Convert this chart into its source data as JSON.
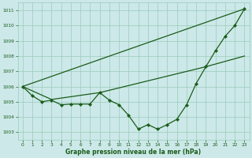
{
  "bg_color": "#cce8e8",
  "grid_color": "#99ccbb",
  "line_color": "#1a5c1a",
  "marker_color": "#1a5c1a",
  "xlabel": "Graphe pression niveau de la mer (hPa)",
  "xlabel_color": "#1a5c1a",
  "ylim": [
    1002.5,
    1011.5
  ],
  "xlim": [
    -0.5,
    23.5
  ],
  "yticks": [
    1003,
    1004,
    1005,
    1006,
    1007,
    1008,
    1009,
    1010,
    1011
  ],
  "xticks": [
    0,
    1,
    2,
    3,
    4,
    5,
    6,
    7,
    8,
    9,
    10,
    11,
    12,
    13,
    14,
    15,
    16,
    17,
    18,
    19,
    20,
    21,
    22,
    23
  ],
  "series1_x": [
    0,
    1,
    2,
    3,
    4,
    5,
    6,
    7,
    8,
    9,
    10,
    11,
    12,
    13,
    14,
    15,
    16,
    17,
    18,
    19,
    20,
    21,
    22,
    23
  ],
  "series1_y": [
    1006.0,
    1005.4,
    1005.0,
    1005.1,
    1004.8,
    1004.85,
    1004.85,
    1004.85,
    1005.6,
    1005.1,
    1004.8,
    1004.1,
    1003.2,
    1003.5,
    1003.2,
    1003.5,
    1003.85,
    1004.8,
    1006.2,
    1007.3,
    1008.35,
    1009.3,
    1010.0,
    1011.1
  ],
  "series2_x": [
    0,
    3,
    8,
    19,
    23
  ],
  "series2_y": [
    1006.0,
    1005.15,
    1005.6,
    1007.3,
    1008.0
  ],
  "series3_x": [
    0,
    23
  ],
  "series3_y": [
    1006.0,
    1011.1
  ]
}
